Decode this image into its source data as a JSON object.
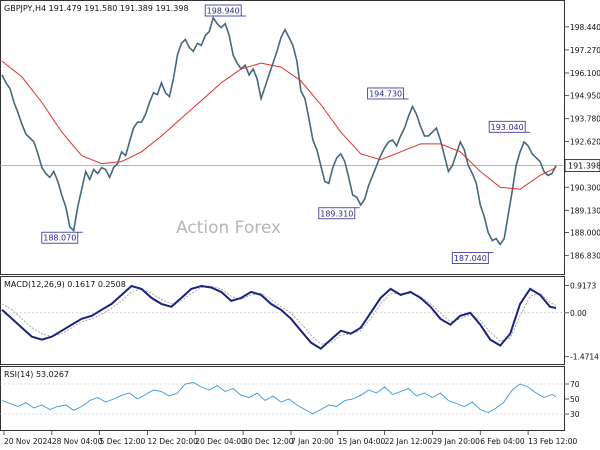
{
  "chart_data": {
    "type": "line",
    "header": "GBPJPY,H4  191.479 191.580 191.389 191.398",
    "watermark": "Action Forex",
    "colors": {
      "price": "#44687c",
      "ma": "#e0322a",
      "macd": "#1a237e",
      "signal": "#9e9e9e",
      "rsi": "#3399e0",
      "label_border": "#2a2a8c",
      "label_text": "#2a2a8c",
      "axis": "#111111",
      "frame": "#333333"
    },
    "price_panel": {
      "ylim": [
        186.0,
        199.6
      ],
      "ticks": [
        "198.440",
        "197.270",
        "196.100",
        "194.950",
        "193.780",
        "192.620",
        "191.398",
        "190.300",
        "189.130",
        "188.000",
        "186.830"
      ],
      "tick_values": [
        198.44,
        197.27,
        196.1,
        194.95,
        193.78,
        192.62,
        191.398,
        190.3,
        189.13,
        188.0,
        186.83
      ],
      "current": {
        "label": "191.398",
        "value": 191.398
      },
      "series": [
        {
          "name": "",
          "x": [
            0,
            4,
            8,
            12,
            16,
            20,
            24,
            28,
            32,
            36,
            40,
            44,
            48,
            52,
            56,
            60,
            64,
            68,
            72,
            76,
            80,
            84,
            88,
            92,
            96,
            100,
            104,
            108,
            112,
            116,
            120,
            124,
            128,
            132,
            136,
            140,
            144,
            148,
            152,
            156,
            160,
            164,
            168,
            172,
            176,
            180,
            184,
            188,
            192,
            196,
            200,
            204,
            208,
            212,
            216,
            220,
            224,
            228,
            232,
            236,
            240,
            244,
            248,
            252,
            256,
            260,
            264,
            268,
            272,
            276,
            280,
            284,
            288,
            292,
            296,
            300,
            304,
            308,
            312,
            316,
            320,
            324,
            328,
            332,
            336,
            340,
            344,
            348,
            352,
            356,
            360,
            364,
            368,
            372,
            376,
            380,
            384,
            388,
            392,
            396,
            400,
            404,
            408,
            412,
            416,
            420,
            424,
            428,
            432,
            436,
            440,
            444,
            448,
            452,
            456,
            460,
            464,
            468,
            472,
            476,
            480,
            484,
            488,
            492,
            496,
            500,
            504,
            508,
            512,
            516,
            520,
            524,
            528,
            532,
            536,
            540,
            544,
            548,
            552,
            556
          ],
          "values": [
            196.0,
            195.6,
            195.3,
            194.6,
            194.1,
            193.5,
            193.0,
            192.8,
            192.6,
            192.0,
            191.3,
            191.0,
            190.8,
            191.1,
            190.6,
            189.9,
            189.3,
            188.3,
            188.1,
            189.3,
            190.2,
            191.1,
            190.7,
            191.2,
            191.0,
            191.3,
            191.2,
            190.8,
            191.3,
            191.5,
            192.1,
            191.9,
            192.6,
            193.3,
            193.6,
            193.6,
            194.0,
            194.6,
            195.1,
            195.0,
            195.6,
            195.1,
            194.9,
            195.8,
            197.0,
            197.6,
            197.8,
            197.4,
            197.2,
            197.6,
            197.5,
            198.0,
            198.2,
            198.9,
            198.6,
            198.4,
            198.6,
            198.0,
            197.0,
            196.6,
            196.3,
            196.5,
            196.0,
            196.3,
            195.8,
            194.8,
            195.4,
            196.0,
            196.6,
            197.2,
            197.9,
            198.3,
            197.9,
            197.5,
            196.7,
            195.2,
            194.8,
            193.8,
            192.7,
            192.2,
            191.4,
            190.6,
            190.5,
            191.3,
            191.8,
            192.0,
            191.6,
            190.8,
            189.9,
            189.8,
            189.4,
            189.7,
            190.4,
            190.9,
            191.4,
            191.9,
            192.3,
            192.6,
            192.7,
            192.4,
            192.9,
            193.3,
            193.9,
            194.4,
            194.0,
            193.4,
            192.9,
            192.9,
            193.1,
            193.3,
            192.7,
            191.9,
            191.1,
            191.4,
            192.0,
            192.6,
            192.2,
            191.4,
            191.0,
            190.5,
            189.4,
            188.8,
            188.0,
            187.6,
            187.7,
            187.4,
            187.7,
            188.9,
            190.1,
            191.4,
            192.1,
            192.6,
            192.4,
            192.0,
            191.8,
            191.6,
            191.1,
            190.9,
            191.0,
            191.4
          ]
        },
        {
          "name": "",
          "x": [
            0,
            20,
            40,
            60,
            80,
            100,
            120,
            140,
            160,
            180,
            200,
            220,
            240,
            260,
            280,
            300,
            320,
            340,
            360,
            380,
            400,
            420,
            440,
            460,
            480,
            500,
            520,
            540,
            556
          ],
          "values": [
            196.7,
            195.9,
            194.6,
            193.1,
            191.9,
            191.5,
            191.6,
            192.1,
            192.9,
            193.8,
            194.7,
            195.6,
            196.3,
            196.6,
            196.4,
            195.7,
            194.5,
            193.1,
            192.0,
            191.7,
            192.1,
            192.5,
            192.5,
            192.1,
            191.1,
            190.3,
            190.2,
            190.9,
            191.3
          ]
        }
      ],
      "labels": [
        {
          "text": "198.940",
          "x": 222,
          "value": 198.94
        },
        {
          "text": "188.070",
          "x": 58,
          "value": 188.07
        },
        {
          "text": "194.730",
          "x": 385,
          "value": 194.73
        },
        {
          "text": "189.310",
          "x": 336,
          "value": 189.31
        },
        {
          "text": "193.040",
          "x": 507,
          "value": 193.04
        },
        {
          "text": "187.040",
          "x": 470,
          "value": 187.04
        }
      ]
    },
    "macd_panel": {
      "title": "MACD(12,26,9) 0.1617 0.2508",
      "ylim": [
        -1.65,
        1.1
      ],
      "ticks": [
        "0.9173",
        "0.00",
        "-1.4714"
      ],
      "tick_values": [
        0.9173,
        0.0,
        -1.4714
      ],
      "series": [
        {
          "name": "",
          "x": [
            0,
            10,
            20,
            30,
            40,
            50,
            60,
            70,
            80,
            90,
            100,
            110,
            120,
            130,
            140,
            150,
            160,
            170,
            180,
            190,
            200,
            210,
            220,
            230,
            240,
            250,
            260,
            270,
            280,
            290,
            300,
            310,
            320,
            330,
            340,
            350,
            360,
            370,
            380,
            390,
            400,
            410,
            420,
            430,
            440,
            450,
            460,
            470,
            480,
            490,
            500,
            510,
            520,
            530,
            540,
            550,
            556
          ],
          "values": [
            0.1,
            -0.2,
            -0.5,
            -0.8,
            -0.9,
            -0.8,
            -0.6,
            -0.4,
            -0.2,
            -0.1,
            0.1,
            0.3,
            0.6,
            0.9,
            0.8,
            0.5,
            0.3,
            0.2,
            0.5,
            0.8,
            0.9,
            0.85,
            0.7,
            0.4,
            0.5,
            0.7,
            0.6,
            0.3,
            0.1,
            -0.2,
            -0.6,
            -1.0,
            -1.2,
            -0.9,
            -0.6,
            -0.7,
            -0.5,
            0.0,
            0.5,
            0.8,
            0.6,
            0.7,
            0.5,
            0.2,
            -0.2,
            -0.4,
            -0.1,
            0.0,
            -0.4,
            -0.9,
            -1.1,
            -0.7,
            0.3,
            0.8,
            0.6,
            0.2,
            0.16
          ]
        },
        {
          "name": "",
          "x": [
            0,
            10,
            20,
            30,
            40,
            50,
            60,
            70,
            80,
            90,
            100,
            110,
            120,
            130,
            140,
            150,
            160,
            170,
            180,
            190,
            200,
            210,
            220,
            230,
            240,
            250,
            260,
            270,
            280,
            290,
            300,
            310,
            320,
            330,
            340,
            350,
            360,
            370,
            380,
            390,
            400,
            410,
            420,
            430,
            440,
            450,
            460,
            470,
            480,
            490,
            500,
            510,
            520,
            530,
            540,
            550,
            556
          ],
          "values": [
            0.3,
            0.1,
            -0.2,
            -0.5,
            -0.7,
            -0.8,
            -0.7,
            -0.5,
            -0.3,
            -0.2,
            -0.05,
            0.15,
            0.4,
            0.7,
            0.8,
            0.65,
            0.45,
            0.3,
            0.4,
            0.65,
            0.85,
            0.9,
            0.8,
            0.55,
            0.45,
            0.6,
            0.65,
            0.45,
            0.2,
            0.0,
            -0.35,
            -0.75,
            -1.05,
            -1.0,
            -0.75,
            -0.7,
            -0.6,
            -0.2,
            0.3,
            0.65,
            0.65,
            0.65,
            0.55,
            0.3,
            0.0,
            -0.3,
            -0.2,
            -0.05,
            -0.25,
            -0.65,
            -0.95,
            -0.85,
            -0.1,
            0.55,
            0.65,
            0.35,
            0.25
          ]
        }
      ]
    },
    "rsi_panel": {
      "title": "RSI(14) 53.0267",
      "ylim": [
        10,
        90
      ],
      "ticks": [
        "70",
        "50",
        "30"
      ],
      "tick_values": [
        70,
        50,
        30
      ],
      "series": [
        {
          "name": "",
          "x": [
            0,
            8,
            16,
            24,
            32,
            40,
            48,
            56,
            64,
            72,
            80,
            88,
            96,
            104,
            112,
            120,
            128,
            136,
            144,
            152,
            160,
            168,
            176,
            184,
            192,
            200,
            208,
            216,
            224,
            232,
            240,
            248,
            256,
            264,
            272,
            280,
            288,
            296,
            304,
            312,
            320,
            328,
            336,
            344,
            352,
            360,
            368,
            376,
            384,
            392,
            400,
            408,
            416,
            424,
            432,
            440,
            448,
            456,
            464,
            472,
            480,
            488,
            496,
            504,
            512,
            520,
            528,
            536,
            544,
            552,
            556
          ],
          "values": [
            48,
            44,
            40,
            45,
            38,
            42,
            36,
            40,
            42,
            35,
            40,
            48,
            52,
            46,
            50,
            55,
            58,
            50,
            56,
            62,
            60,
            54,
            58,
            70,
            72,
            66,
            62,
            68,
            60,
            64,
            55,
            52,
            58,
            48,
            54,
            46,
            50,
            42,
            36,
            30,
            36,
            42,
            40,
            48,
            50,
            55,
            62,
            58,
            66,
            56,
            60,
            64,
            54,
            58,
            52,
            58,
            48,
            44,
            40,
            46,
            36,
            32,
            38,
            46,
            62,
            70,
            66,
            58,
            52,
            56,
            53
          ]
        }
      ]
    },
    "x_axis": {
      "ticks": [
        "20 Nov 2024",
        "28 Nov 04:00",
        "5 Dec 12:00",
        "12 Dec 20:00",
        "20 Dec 04:00",
        "30 Dec 12:00",
        "7 Jan 20:00",
        "15 Jan 04:00",
        "22 Jan 12:00",
        "29 Jan 20:00",
        "6 Feb 04:00",
        "13 Feb 12:00"
      ],
      "tick_positions": [
        2,
        50,
        98,
        146,
        194,
        242,
        290,
        337,
        384,
        432,
        480,
        528
      ]
    }
  }
}
